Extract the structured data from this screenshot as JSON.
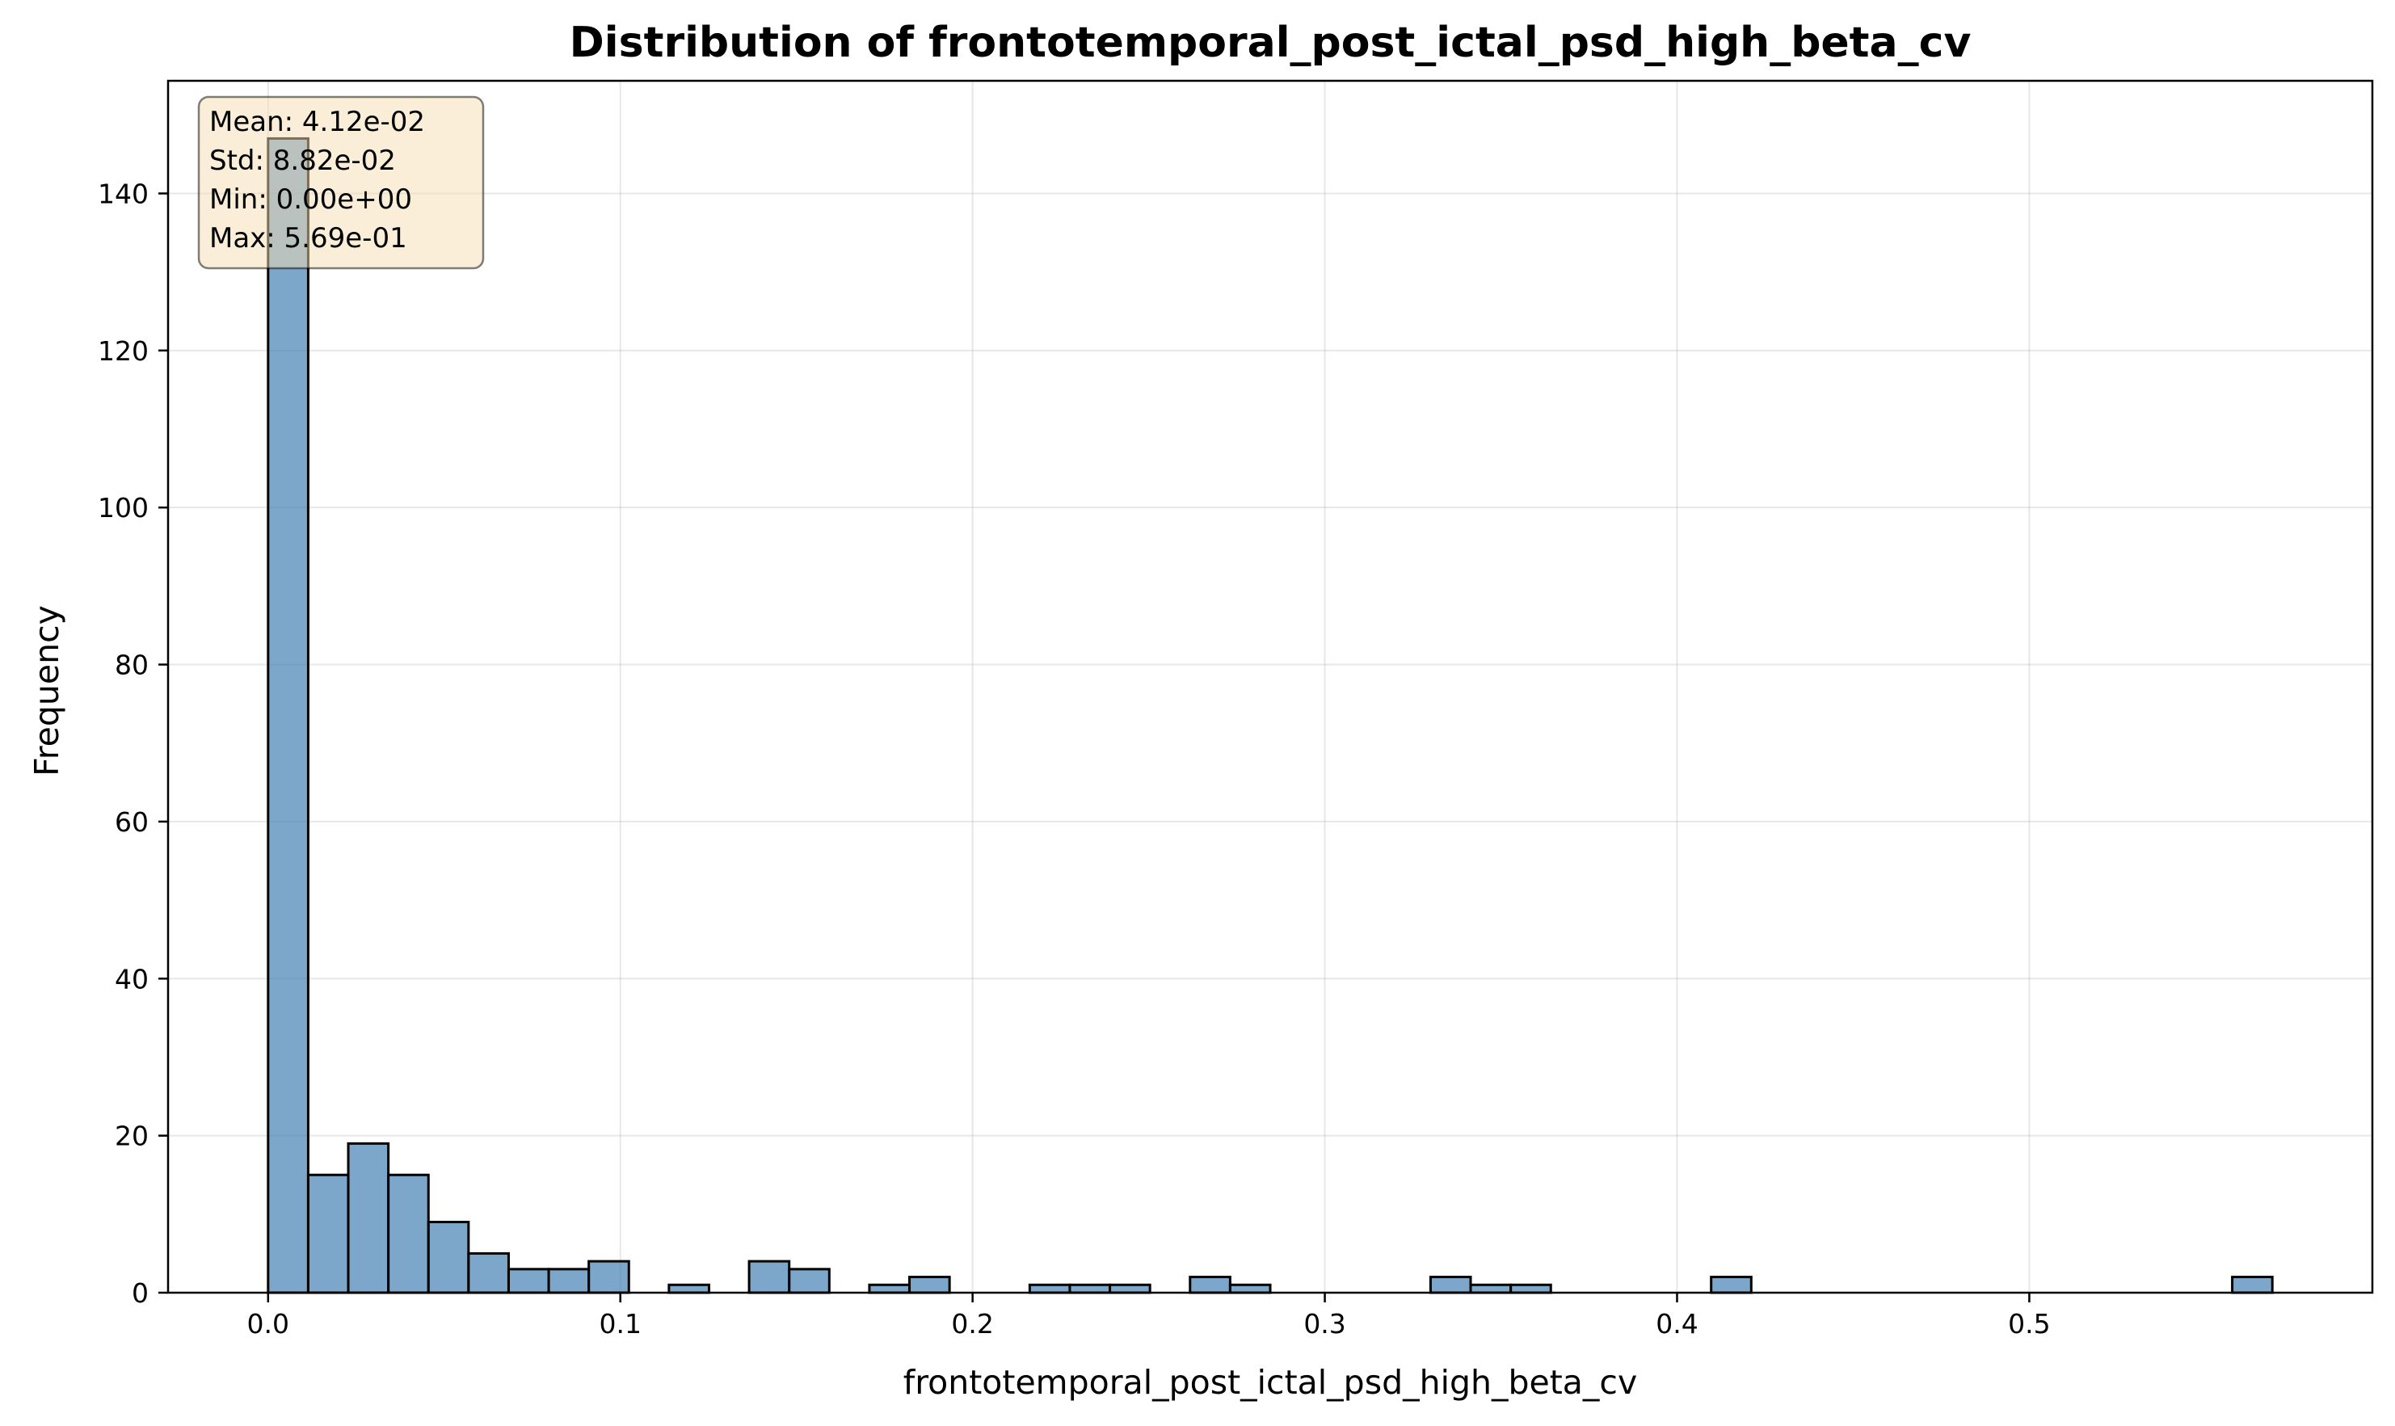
{
  "chart_data": {
    "type": "bar",
    "title": "Distribution of frontotemporal_post_ictal_psd_high_beta_cv",
    "xlabel": "frontotemporal_post_ictal_psd_high_beta_cv",
    "ylabel": "Frequency",
    "xlim": [
      -0.0284,
      0.5974
    ],
    "ylim": [
      0,
      154.35
    ],
    "xticks": [
      0.0,
      0.1,
      0.2,
      0.3,
      0.4,
      0.5
    ],
    "xtick_labels": [
      "0.0",
      "0.1",
      "0.2",
      "0.3",
      "0.4",
      "0.5"
    ],
    "yticks": [
      0,
      20,
      40,
      60,
      80,
      100,
      120,
      140
    ],
    "ytick_labels": [
      "0",
      "20",
      "40",
      "60",
      "80",
      "100",
      "120",
      "140"
    ],
    "grid": true,
    "bar_color": "#4682b4",
    "edge_color": "#000000",
    "bin_start": 0.0,
    "bin_width": 0.01138,
    "counts": [
      147,
      15,
      19,
      15,
      9,
      5,
      3,
      3,
      4,
      0,
      1,
      0,
      4,
      3,
      0,
      1,
      2,
      0,
      0,
      1,
      1,
      1,
      0,
      2,
      1,
      0,
      0,
      0,
      0,
      2,
      1,
      1,
      0,
      0,
      0,
      0,
      2,
      0,
      0,
      0,
      0,
      0,
      0,
      0,
      0,
      0,
      0,
      0,
      0,
      2
    ],
    "stats_box": {
      "lines": [
        "Mean: 4.12e-02",
        "Std: 8.82e-02",
        "Min: 0.00e+00",
        "Max: 5.69e-01"
      ],
      "position": "top-left",
      "background": "#f5deb3"
    }
  }
}
